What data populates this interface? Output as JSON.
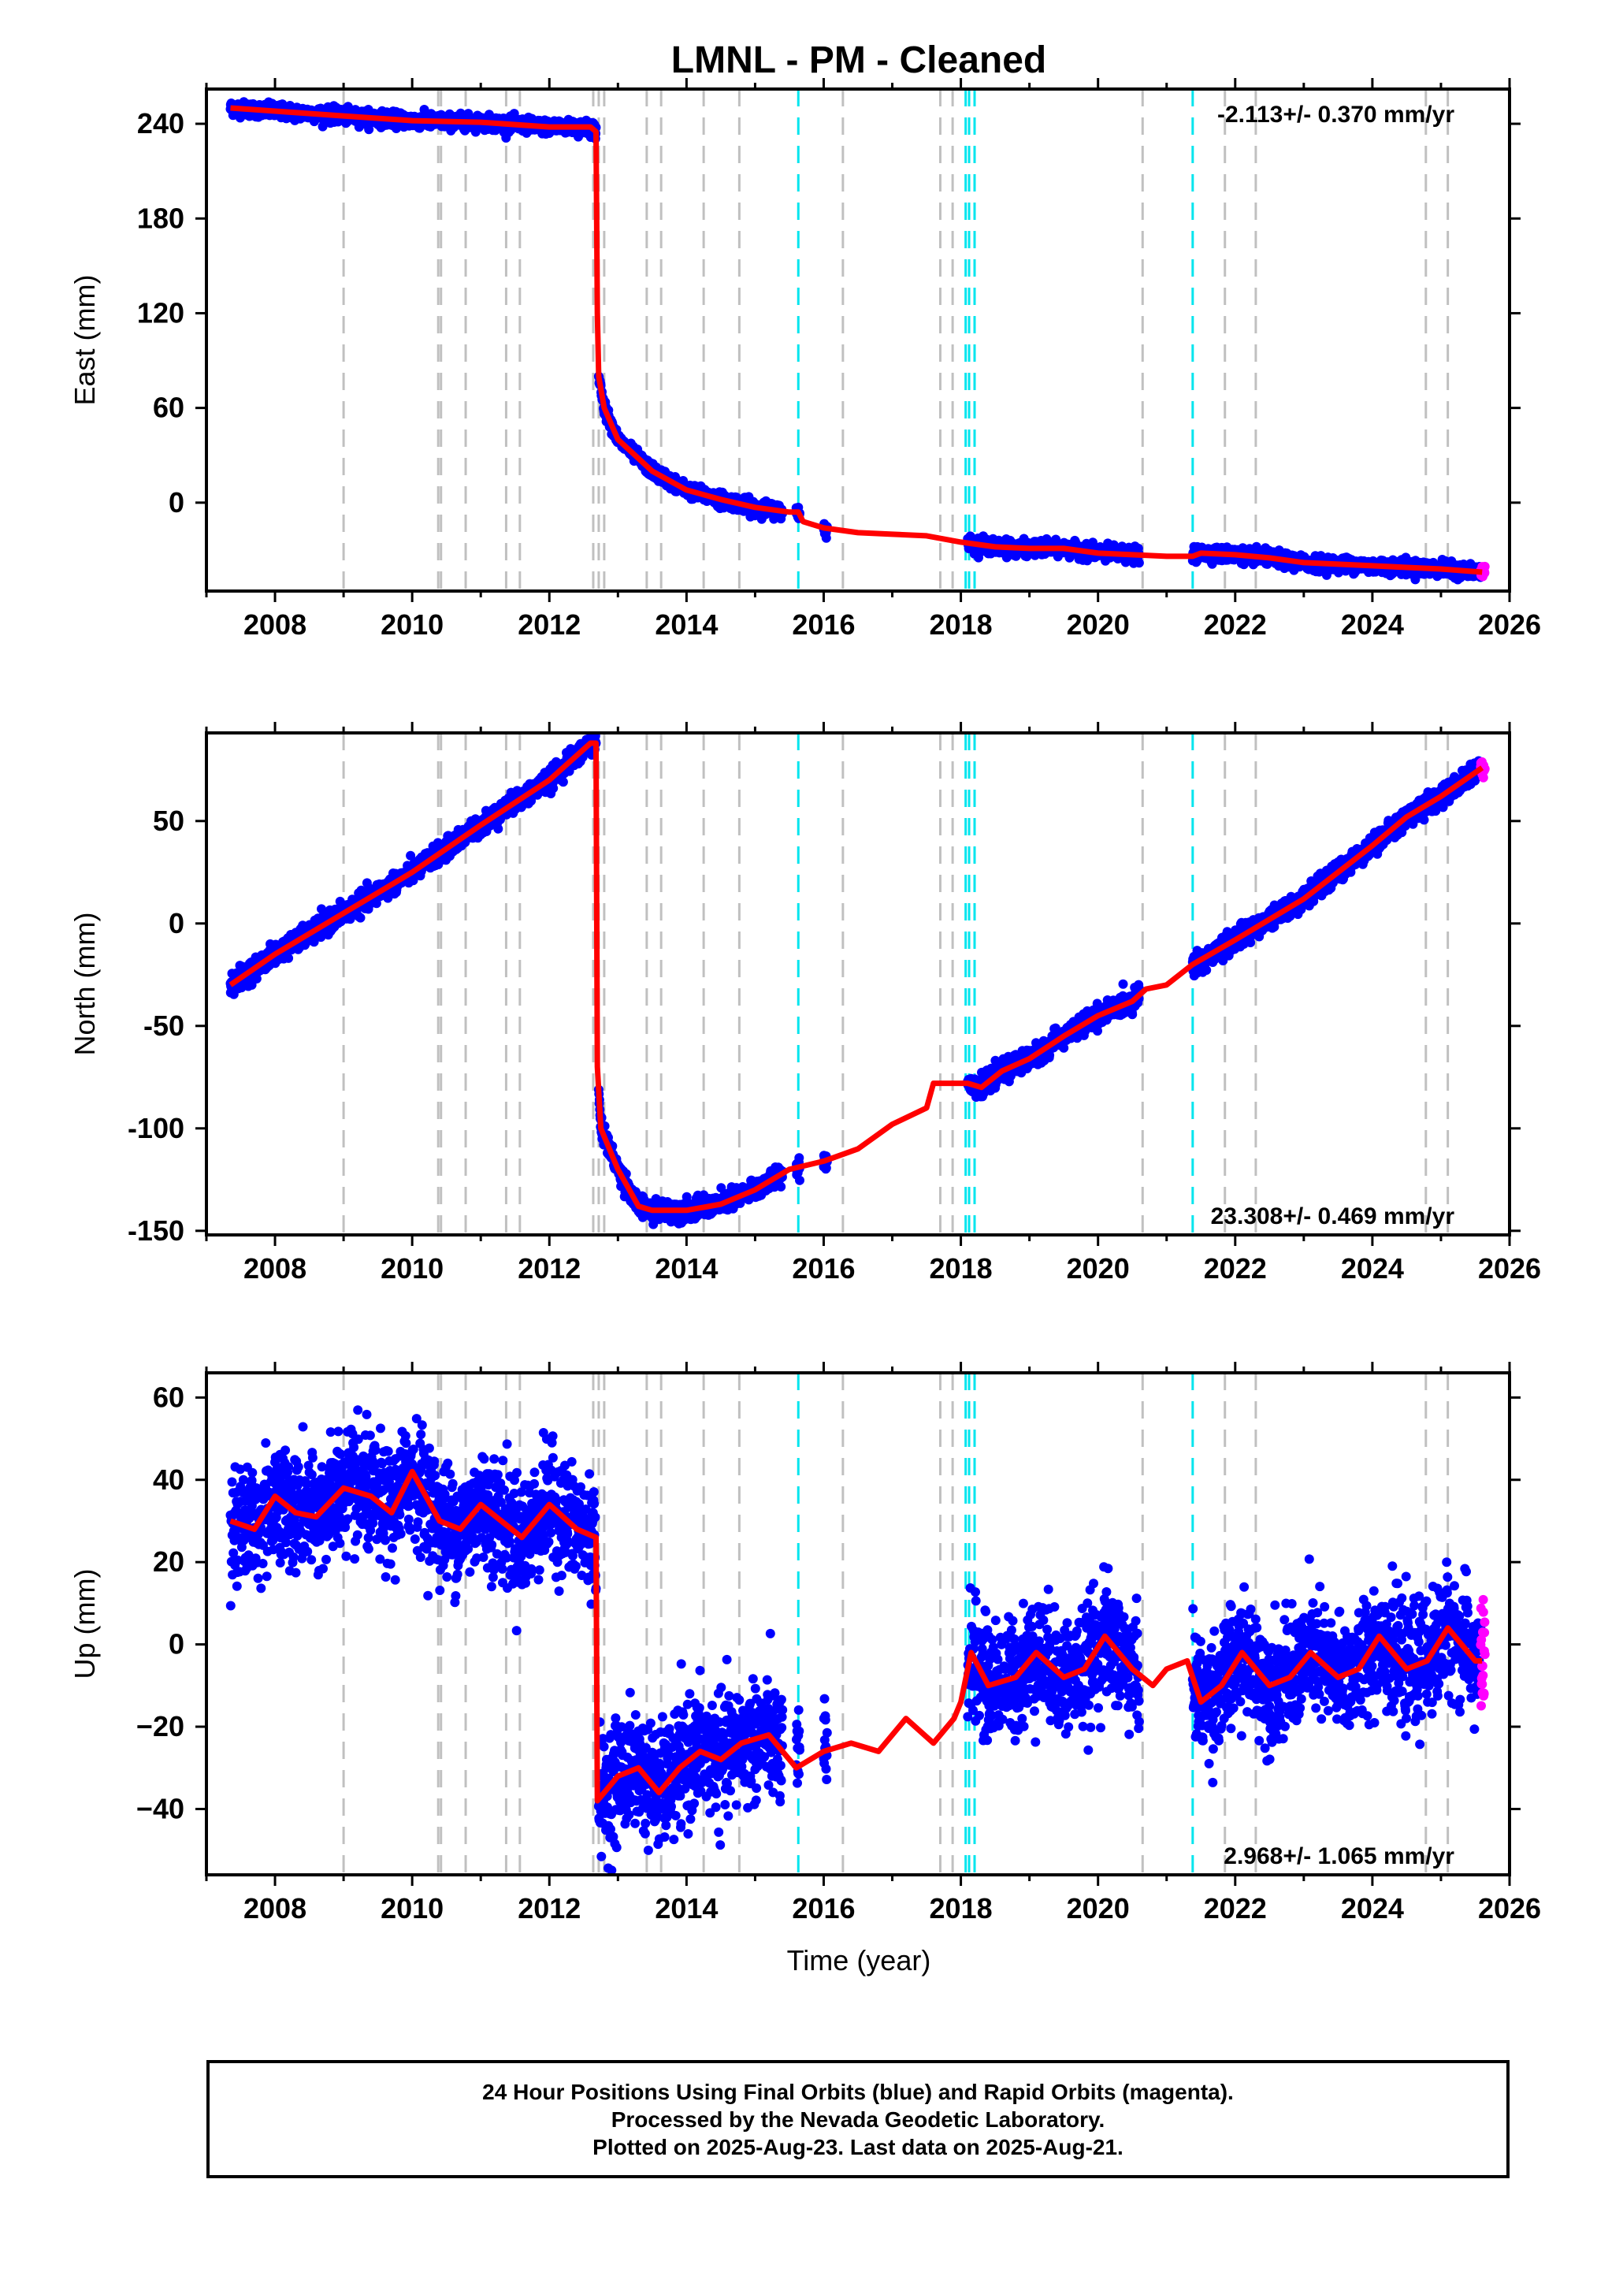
{
  "title": "LMNL  - PM - Cleaned",
  "colors": {
    "final": "#0000ff",
    "rapid": "#ff00ff",
    "model": "#ff0000",
    "gray_event": "#c0c0c0",
    "cyan_event": "#00e5ee"
  },
  "xlabel": "Time (year)",
  "x_ticks": [
    "2008",
    "2010",
    "2012",
    "2014",
    "2016",
    "2018",
    "2020",
    "2022",
    "2024",
    "2026"
  ],
  "events": {
    "gray": [
      2009.0,
      2010.38,
      2010.42,
      2010.78,
      2011.37,
      2011.57,
      2012.64,
      2012.72,
      2012.8,
      2013.42,
      2013.63,
      2014.25,
      2014.77,
      2016.28,
      2017.7,
      2017.88,
      2020.65,
      2021.85,
      2022.3,
      2024.78,
      2025.1
    ],
    "cyan": [
      2015.63,
      2018.07,
      2018.12,
      2018.2,
      2021.38
    ]
  },
  "chart_data": [
    {
      "type": "scatter",
      "panel": "east",
      "ylabel": "East (mm)",
      "y_ticks": [
        "240",
        "180",
        "120",
        "60",
        "0"
      ],
      "ylim": [
        -56,
        262
      ],
      "xlim": [
        2007.0,
        2026.0
      ],
      "rate_text": "-2.113+/- 0.370 mm/yr",
      "rate_position": "top-right",
      "series": [
        {
          "role": "model",
          "points": [
            [
              2007.35,
              250
            ],
            [
              2008.0,
              248
            ],
            [
              2009.0,
              245
            ],
            [
              2010.0,
              242
            ],
            [
              2011.0,
              241
            ],
            [
              2012.0,
              238
            ],
            [
              2012.6,
              238
            ],
            [
              2012.68,
              235
            ],
            [
              2012.7,
              120
            ],
            [
              2012.72,
              80
            ],
            [
              2012.8,
              60
            ],
            [
              2013.0,
              40
            ],
            [
              2013.5,
              20
            ],
            [
              2014.0,
              8
            ],
            [
              2014.5,
              2
            ],
            [
              2015.0,
              -3
            ],
            [
              2015.5,
              -6
            ],
            [
              2015.63,
              -6
            ],
            [
              2015.7,
              -12
            ],
            [
              2016.0,
              -16
            ],
            [
              2016.5,
              -19
            ],
            [
              2017.0,
              -20
            ],
            [
              2017.5,
              -21
            ],
            [
              2018.0,
              -25
            ],
            [
              2018.5,
              -28
            ],
            [
              2019.0,
              -29
            ],
            [
              2019.5,
              -29
            ],
            [
              2020.0,
              -32
            ],
            [
              2020.5,
              -33
            ],
            [
              2021.0,
              -34
            ],
            [
              2021.38,
              -34
            ],
            [
              2021.5,
              -32
            ],
            [
              2022.0,
              -33
            ],
            [
              2022.5,
              -35
            ],
            [
              2023.0,
              -38
            ],
            [
              2023.5,
              -39
            ],
            [
              2024.0,
              -40
            ],
            [
              2024.5,
              -41
            ],
            [
              2025.0,
              -42
            ],
            [
              2025.6,
              -44
            ]
          ]
        },
        {
          "role": "final",
          "segments": [
            [
              2007.35,
              2012.68
            ],
            [
              2012.72,
              2015.4
            ],
            [
              2015.6,
              2015.65
            ],
            [
              2016.0,
              2016.05
            ],
            [
              2018.1,
              2020.6
            ],
            [
              2021.38,
              2025.58
            ]
          ]
        },
        {
          "role": "rapid",
          "segments": [
            [
              2025.58,
              2025.64
            ]
          ]
        }
      ]
    },
    {
      "type": "scatter",
      "panel": "north",
      "ylabel": "North (mm)",
      "y_ticks": [
        "50",
        "0",
        "-50",
        "-100",
        "-150"
      ],
      "ylim": [
        -152,
        93
      ],
      "xlim": [
        2007.0,
        2026.0
      ],
      "rate_text": "23.308+/- 0.469 mm/yr",
      "rate_position": "bottom-right",
      "series": [
        {
          "role": "model",
          "points": [
            [
              2007.35,
              -30
            ],
            [
              2008.0,
              -15
            ],
            [
              2009.0,
              5
            ],
            [
              2010.0,
              25
            ],
            [
              2011.0,
              48
            ],
            [
              2012.0,
              70
            ],
            [
              2012.6,
              88
            ],
            [
              2012.68,
              88
            ],
            [
              2012.7,
              -70
            ],
            [
              2012.75,
              -100
            ],
            [
              2013.0,
              -120
            ],
            [
              2013.3,
              -138
            ],
            [
              2013.5,
              -140
            ],
            [
              2014.0,
              -140
            ],
            [
              2014.5,
              -137
            ],
            [
              2015.0,
              -130
            ],
            [
              2015.5,
              -120
            ],
            [
              2016.0,
              -116
            ],
            [
              2016.5,
              -110
            ],
            [
              2017.0,
              -98
            ],
            [
              2017.5,
              -90
            ],
            [
              2017.6,
              -78
            ],
            [
              2017.9,
              -78
            ],
            [
              2018.1,
              -78
            ],
            [
              2018.3,
              -80
            ],
            [
              2018.6,
              -72
            ],
            [
              2019.0,
              -66
            ],
            [
              2019.5,
              -55
            ],
            [
              2020.0,
              -45
            ],
            [
              2020.5,
              -38
            ],
            [
              2020.7,
              -32
            ],
            [
              2021.0,
              -30
            ],
            [
              2021.38,
              -20
            ],
            [
              2022.0,
              -8
            ],
            [
              2022.5,
              2
            ],
            [
              2023.0,
              12
            ],
            [
              2023.5,
              25
            ],
            [
              2024.0,
              38
            ],
            [
              2024.5,
              52
            ],
            [
              2025.0,
              62
            ],
            [
              2025.6,
              76
            ]
          ]
        },
        {
          "role": "final",
          "segments": [
            [
              2007.35,
              2012.68
            ],
            [
              2012.72,
              2015.4
            ],
            [
              2015.6,
              2015.65
            ],
            [
              2016.0,
              2016.05
            ],
            [
              2018.1,
              2020.6
            ],
            [
              2021.38,
              2025.58
            ]
          ]
        },
        {
          "role": "rapid",
          "segments": [
            [
              2025.58,
              2025.64
            ]
          ]
        }
      ]
    },
    {
      "type": "scatter",
      "panel": "up",
      "ylabel": "Up (mm)",
      "y_ticks": [
        "60",
        "40",
        "20",
        "0",
        "−20",
        "−40"
      ],
      "ylim": [
        -56,
        66
      ],
      "xlim": [
        2007.0,
        2026.0
      ],
      "rate_text": "2.968+/- 1.065 mm/yr",
      "rate_position": "bottom-right",
      "series": [
        {
          "role": "model",
          "points": [
            [
              2007.35,
              30
            ],
            [
              2007.7,
              28
            ],
            [
              2008.0,
              36
            ],
            [
              2008.3,
              32
            ],
            [
              2008.6,
              31
            ],
            [
              2009.0,
              38
            ],
            [
              2009.4,
              36
            ],
            [
              2009.7,
              32
            ],
            [
              2010.0,
              42
            ],
            [
              2010.4,
              30
            ],
            [
              2010.7,
              28
            ],
            [
              2011.0,
              34
            ],
            [
              2011.3,
              30
            ],
            [
              2011.6,
              26
            ],
            [
              2012.0,
              34
            ],
            [
              2012.4,
              28
            ],
            [
              2012.68,
              26
            ],
            [
              2012.7,
              -38
            ],
            [
              2013.0,
              -32
            ],
            [
              2013.3,
              -30
            ],
            [
              2013.6,
              -36
            ],
            [
              2013.9,
              -30
            ],
            [
              2014.2,
              -26
            ],
            [
              2014.5,
              -28
            ],
            [
              2014.8,
              -24
            ],
            [
              2015.2,
              -22
            ],
            [
              2015.6,
              -30
            ],
            [
              2016.0,
              -26
            ],
            [
              2016.4,
              -24
            ],
            [
              2016.8,
              -26
            ],
            [
              2017.2,
              -18
            ],
            [
              2017.6,
              -24
            ],
            [
              2017.9,
              -18
            ],
            [
              2018.0,
              -14
            ],
            [
              2018.15,
              -2
            ],
            [
              2018.4,
              -10
            ],
            [
              2018.8,
              -8
            ],
            [
              2019.1,
              -2
            ],
            [
              2019.5,
              -8
            ],
            [
              2019.8,
              -6
            ],
            [
              2020.1,
              2
            ],
            [
              2020.5,
              -6
            ],
            [
              2020.8,
              -10
            ],
            [
              2021.0,
              -6
            ],
            [
              2021.3,
              -4
            ],
            [
              2021.5,
              -14
            ],
            [
              2021.8,
              -10
            ],
            [
              2022.1,
              -2
            ],
            [
              2022.5,
              -10
            ],
            [
              2022.8,
              -8
            ],
            [
              2023.1,
              -2
            ],
            [
              2023.5,
              -8
            ],
            [
              2023.8,
              -6
            ],
            [
              2024.1,
              2
            ],
            [
              2024.5,
              -6
            ],
            [
              2024.8,
              -4
            ],
            [
              2025.1,
              4
            ],
            [
              2025.5,
              -4
            ],
            [
              2025.6,
              -4
            ]
          ]
        },
        {
          "role": "final",
          "segments": [
            [
              2007.35,
              2012.68
            ],
            [
              2012.72,
              2015.4
            ],
            [
              2015.6,
              2015.65
            ],
            [
              2016.0,
              2016.05
            ],
            [
              2018.1,
              2020.6
            ],
            [
              2021.38,
              2025.58
            ]
          ]
        },
        {
          "role": "rapid",
          "segments": [
            [
              2025.58,
              2025.64
            ]
          ]
        }
      ]
    }
  ],
  "footer": {
    "line1": "24 Hour Positions Using Final Orbits (blue) and Rapid Orbits (magenta).",
    "line2": "Processed by the Nevada Geodetic Laboratory.",
    "line3": "Plotted on 2025-Aug-23. Last data on 2025-Aug-21."
  }
}
